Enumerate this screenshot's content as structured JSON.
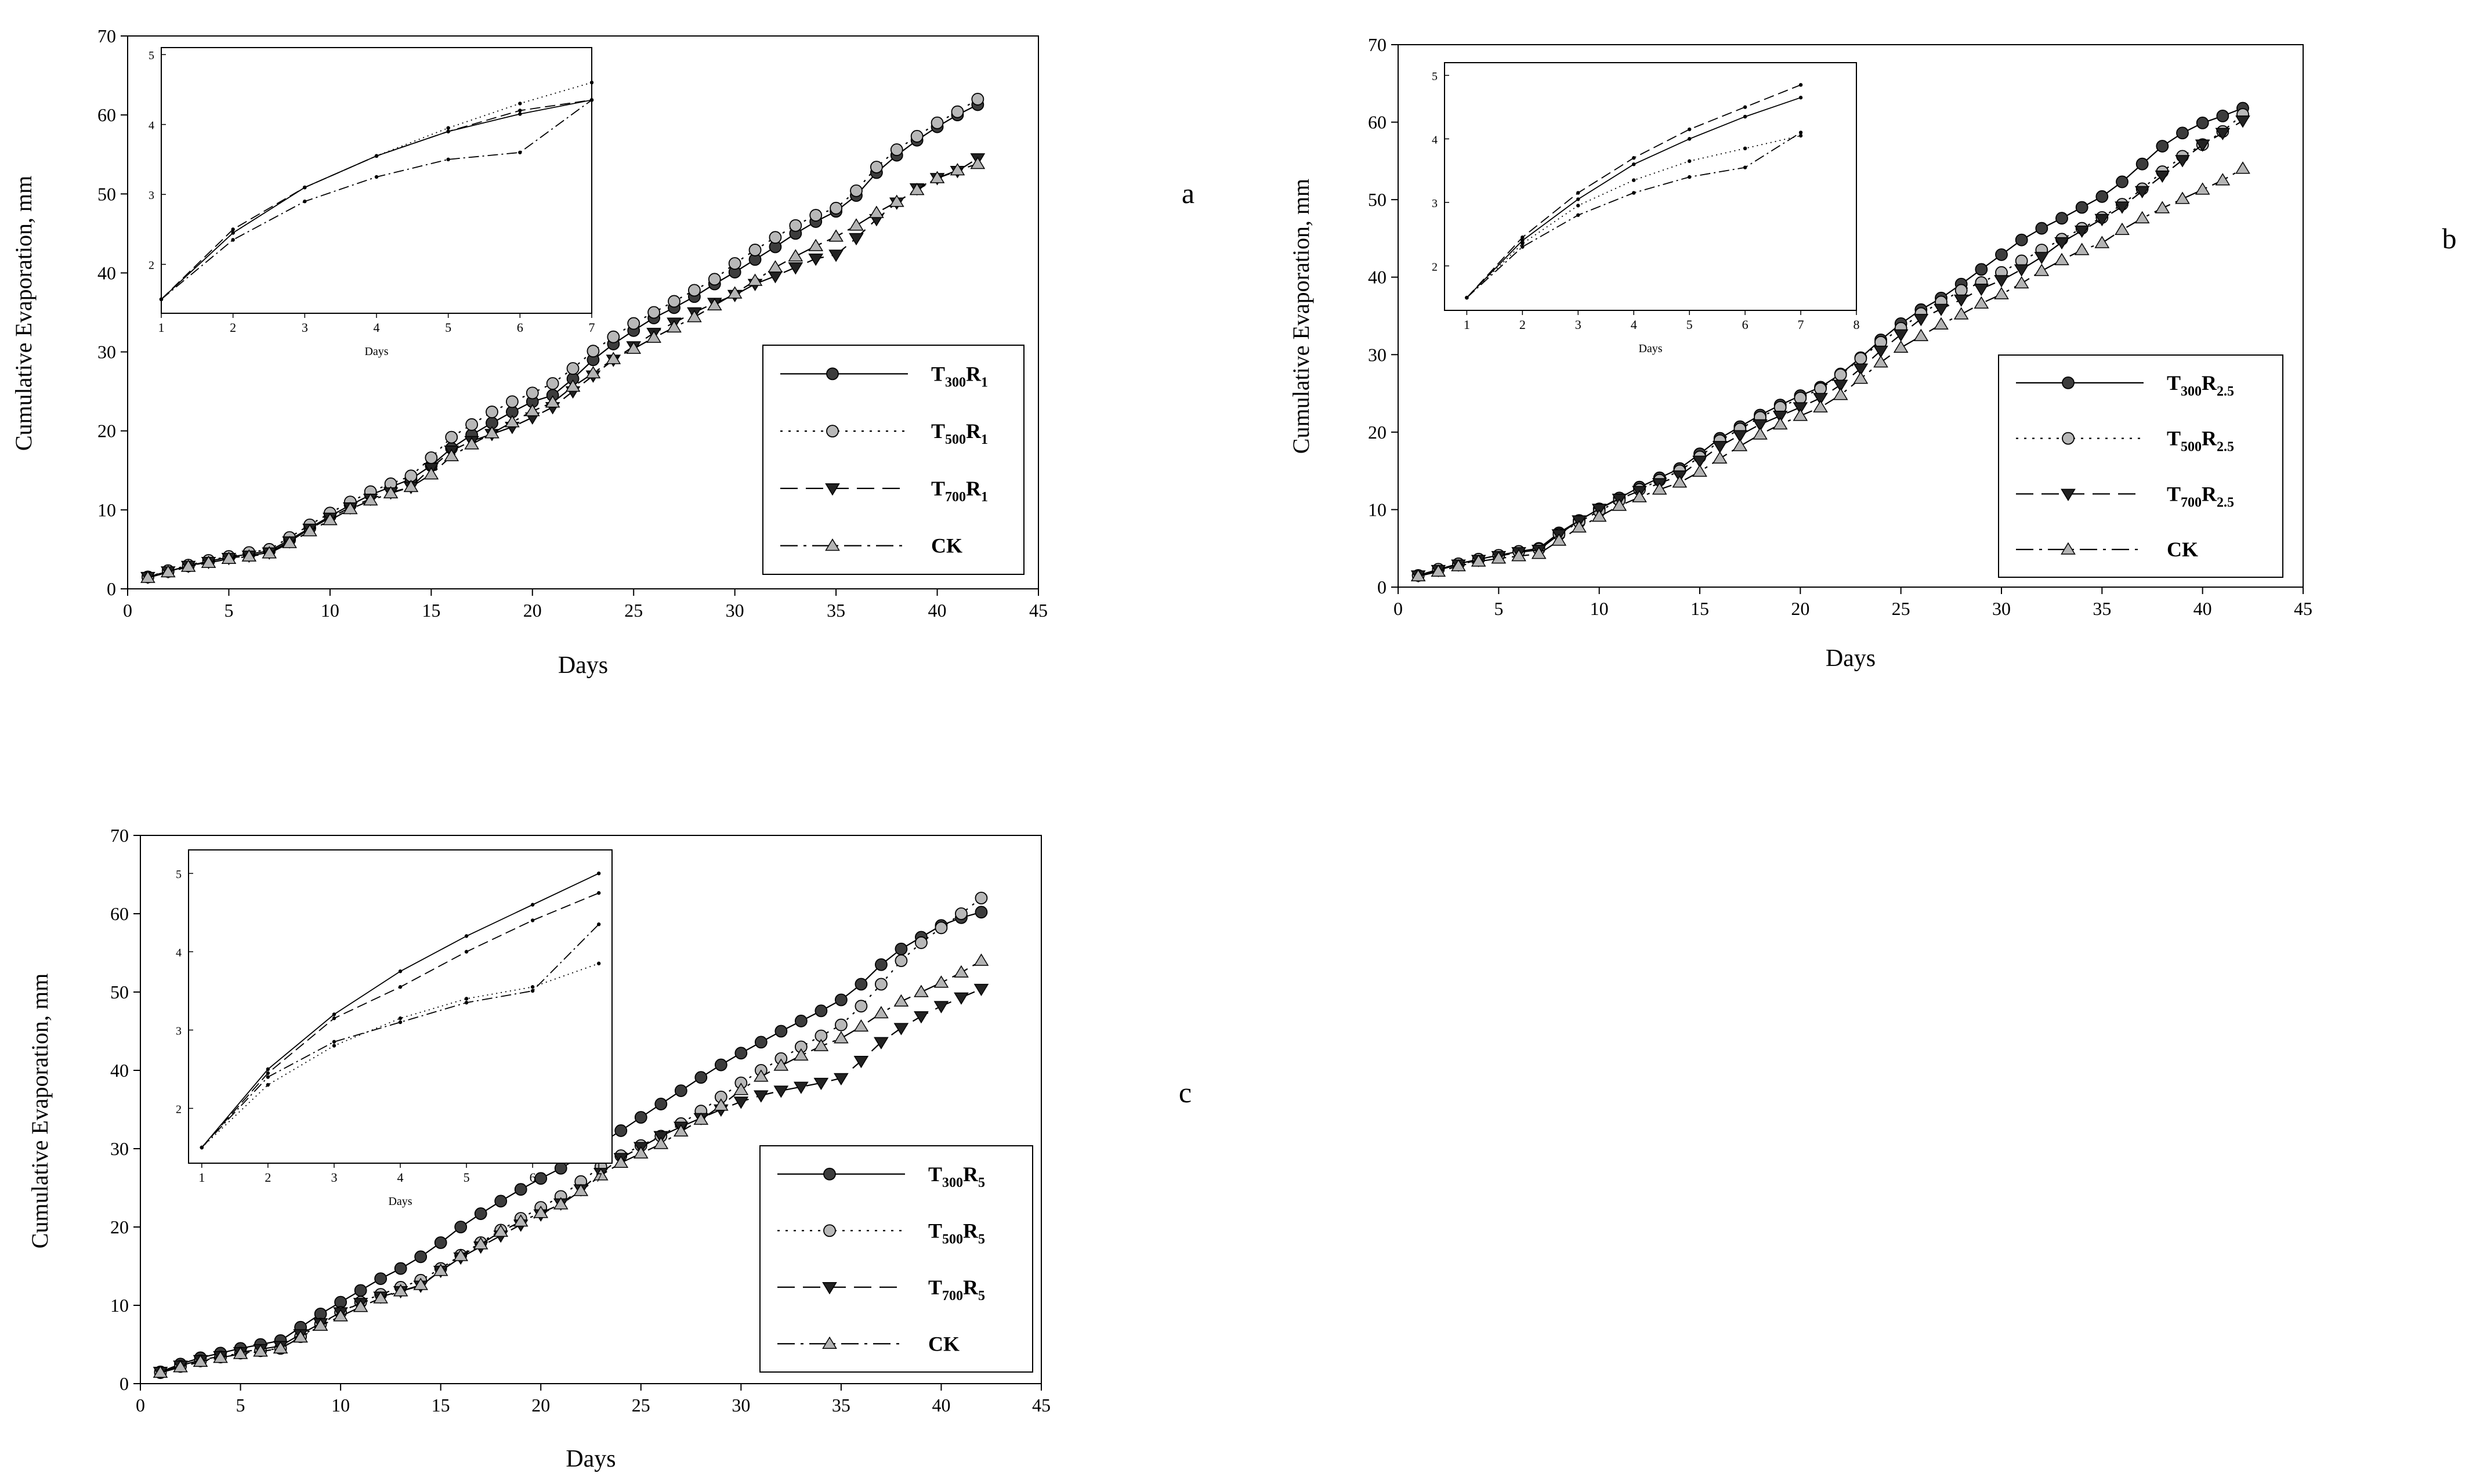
{
  "figure": {
    "panels": [
      {
        "key": "a",
        "label": "a",
        "legend": [
          {
            "base": "T",
            "sub1": "300",
            "mid": "R",
            "sub2": "1"
          },
          {
            "base": "T",
            "sub1": "500",
            "mid": "R",
            "sub2": "1"
          },
          {
            "base": "T",
            "sub1": "700",
            "mid": "R",
            "sub2": "1"
          },
          {
            "base": "CK",
            "sub1": "",
            "mid": "",
            "sub2": ""
          }
        ]
      },
      {
        "key": "b",
        "label": "b",
        "legend": [
          {
            "base": "T",
            "sub1": "300",
            "mid": "R",
            "sub2": "2.5"
          },
          {
            "base": "T",
            "sub1": "500",
            "mid": "R",
            "sub2": "2.5"
          },
          {
            "base": "T",
            "sub1": "700",
            "mid": "R",
            "sub2": "2.5"
          },
          {
            "base": "CK",
            "sub1": "",
            "mid": "",
            "sub2": ""
          }
        ]
      },
      {
        "key": "c",
        "label": "c",
        "legend": [
          {
            "base": "T",
            "sub1": "300",
            "mid": "R",
            "sub2": "5"
          },
          {
            "base": "T",
            "sub1": "500",
            "mid": "R",
            "sub2": "5"
          },
          {
            "base": "T",
            "sub1": "700",
            "mid": "R",
            "sub2": "5"
          },
          {
            "base": "CK",
            "sub1": "",
            "mid": "",
            "sub2": ""
          }
        ]
      }
    ]
  },
  "chart_data": [
    {
      "type": "line",
      "panel": "a",
      "title": "",
      "xlabel": "Days",
      "ylabel": "Cumulative Evaporation, mm",
      "xlim": [
        0,
        45
      ],
      "ylim": [
        0,
        70
      ],
      "xticks": [
        0,
        5,
        10,
        15,
        20,
        25,
        30,
        35,
        40,
        45
      ],
      "yticks": [
        0,
        10,
        20,
        30,
        40,
        50,
        60,
        70
      ],
      "x": [
        1,
        2,
        3,
        4,
        5,
        6,
        7,
        8,
        9,
        10,
        11,
        12,
        13,
        14,
        15,
        16,
        17,
        18,
        19,
        20,
        21,
        22,
        23,
        24,
        25,
        26,
        27,
        28,
        29,
        30,
        31,
        32,
        33,
        34,
        35,
        36,
        37,
        38,
        39,
        40,
        41,
        42
      ],
      "series": [
        {
          "name": "T300R1",
          "marker": "circle-dark",
          "values": [
            1.5,
            2.2,
            2.9,
            3.5,
            4.0,
            4.4,
            4.8,
            6.2,
            7.7,
            9.2,
            10.6,
            11.9,
            12.9,
            13.9,
            15.6,
            17.8,
            19.5,
            21.0,
            22.4,
            23.7,
            24.5,
            26.6,
            29.0,
            31.0,
            32.7,
            34.3,
            35.6,
            37.0,
            38.6,
            40.1,
            41.7,
            43.3,
            45.0,
            46.5,
            47.8,
            49.8,
            52.7,
            54.9,
            56.8,
            58.5,
            60.0,
            61.3
          ]
        },
        {
          "name": "T500R1",
          "marker": "circle-light",
          "values": [
            1.5,
            2.3,
            3.0,
            3.6,
            4.1,
            4.6,
            5.0,
            6.5,
            8.1,
            9.6,
            11.0,
            12.3,
            13.3,
            14.3,
            16.6,
            19.2,
            20.8,
            22.4,
            23.7,
            24.8,
            26.0,
            27.9,
            30.1,
            31.9,
            33.6,
            35.0,
            36.4,
            37.8,
            39.2,
            41.2,
            42.9,
            44.5,
            46.0,
            47.3,
            48.2,
            50.4,
            53.4,
            55.6,
            57.3,
            59.0,
            60.4,
            62.0
          ]
        },
        {
          "name": "T700R1",
          "marker": "triangle-down",
          "values": [
            1.5,
            2.2,
            2.9,
            3.4,
            3.9,
            4.2,
            4.6,
            6.0,
            7.6,
            9.0,
            10.3,
            11.4,
            12.2,
            12.9,
            15.3,
            17.5,
            18.7,
            19.6,
            20.5,
            21.7,
            23.0,
            25.0,
            27.0,
            29.0,
            30.7,
            32.4,
            33.7,
            35.0,
            36.2,
            37.2,
            38.6,
            39.6,
            40.7,
            41.8,
            42.3,
            44.4,
            46.8,
            48.9,
            50.7,
            52.0,
            52.9,
            54.5
          ]
        },
        {
          "name": "CK",
          "marker": "triangle-up",
          "values": [
            1.4,
            2.1,
            2.8,
            3.3,
            3.8,
            4.1,
            4.5,
            5.8,
            7.3,
            8.7,
            10.1,
            11.2,
            12.1,
            12.9,
            14.5,
            16.8,
            18.3,
            19.7,
            21.1,
            22.5,
            23.6,
            25.6,
            27.3,
            29.1,
            30.4,
            31.8,
            33.1,
            34.4,
            35.9,
            37.4,
            39.0,
            40.7,
            42.1,
            43.4,
            44.6,
            46.0,
            47.6,
            49.0,
            50.5,
            52.0,
            53.0,
            53.8
          ]
        }
      ],
      "inset": {
        "xlabel": "Days",
        "xlim": [
          1,
          7
        ],
        "ylim": [
          1.3,
          5.1
        ],
        "xticks": [
          1,
          2,
          3,
          4,
          5,
          6,
          7
        ],
        "yticks": [
          2,
          3,
          4,
          5
        ],
        "x": [
          1,
          2,
          3,
          4,
          5,
          6,
          7
        ],
        "series": [
          {
            "name": "T300R1",
            "values": [
              1.5,
              2.45,
              3.1,
              3.55,
              3.9,
              4.15,
              4.35
            ]
          },
          {
            "name": "T500R1",
            "values": [
              1.5,
              2.45,
              3.1,
              3.55,
              3.95,
              4.3,
              4.6
            ]
          },
          {
            "name": "T700R1",
            "values": [
              1.5,
              2.5,
              3.1,
              3.55,
              3.9,
              4.2,
              4.35
            ]
          },
          {
            "name": "CK",
            "values": [
              1.5,
              2.35,
              2.9,
              3.25,
              3.5,
              3.6,
              4.35
            ]
          }
        ]
      }
    },
    {
      "type": "line",
      "panel": "b",
      "title": "",
      "xlabel": "Days",
      "ylabel": "Cumulative Evaporation, mm",
      "xlim": [
        0,
        45
      ],
      "ylim": [
        0,
        70
      ],
      "xticks": [
        0,
        5,
        10,
        15,
        20,
        25,
        30,
        35,
        40,
        45
      ],
      "yticks": [
        0,
        10,
        20,
        30,
        40,
        50,
        60,
        70
      ],
      "x": [
        1,
        2,
        3,
        4,
        5,
        6,
        7,
        8,
        9,
        10,
        11,
        12,
        13,
        14,
        15,
        16,
        17,
        18,
        19,
        20,
        21,
        22,
        23,
        24,
        25,
        26,
        27,
        28,
        29,
        30,
        31,
        32,
        33,
        34,
        35,
        36,
        37,
        38,
        39,
        40,
        41,
        42
      ],
      "series": [
        {
          "name": "T300R2.5",
          "marker": "circle-dark",
          "values": [
            1.5,
            2.3,
            3.0,
            3.6,
            4.1,
            4.6,
            5.0,
            7.0,
            8.6,
            10.1,
            11.5,
            12.9,
            14.1,
            15.3,
            17.2,
            19.2,
            20.7,
            22.2,
            23.5,
            24.7,
            25.8,
            27.5,
            29.6,
            31.9,
            34.0,
            35.8,
            37.3,
            39.1,
            41.0,
            42.9,
            44.8,
            46.3,
            47.6,
            49.0,
            50.4,
            52.3,
            54.6,
            56.9,
            58.6,
            59.9,
            60.8,
            61.8
          ]
        },
        {
          "name": "T500R2.5",
          "marker": "circle-light",
          "values": [
            1.5,
            2.3,
            3.0,
            3.6,
            4.1,
            4.6,
            4.9,
            6.8,
            8.4,
            9.8,
            11.2,
            12.6,
            13.8,
            15.0,
            16.8,
            18.9,
            20.4,
            21.9,
            23.2,
            24.4,
            25.6,
            27.4,
            29.5,
            31.6,
            33.4,
            35.3,
            36.8,
            38.3,
            39.3,
            40.6,
            42.1,
            43.5,
            44.9,
            46.3,
            47.7,
            49.4,
            51.4,
            53.6,
            55.6,
            57.1,
            58.8,
            61.0
          ]
        },
        {
          "name": "T700R2.5",
          "marker": "triangle-down",
          "values": [
            1.5,
            2.2,
            2.9,
            3.5,
            4.0,
            4.5,
            4.8,
            6.8,
            8.6,
            10.1,
            11.4,
            12.4,
            13.4,
            14.4,
            16.3,
            18.2,
            19.6,
            21.0,
            22.1,
            23.2,
            24.4,
            26.1,
            28.2,
            30.5,
            32.6,
            34.6,
            35.9,
            37.1,
            38.5,
            39.6,
            41.0,
            42.6,
            44.5,
            46.0,
            47.5,
            49.1,
            51.1,
            53.1,
            55.1,
            57.1,
            58.6,
            60.2
          ]
        },
        {
          "name": "CK",
          "marker": "triangle-up",
          "values": [
            1.4,
            2.0,
            2.7,
            3.3,
            3.7,
            4.0,
            4.3,
            6.0,
            7.7,
            9.1,
            10.5,
            11.6,
            12.6,
            13.5,
            14.9,
            16.6,
            18.2,
            19.7,
            21.0,
            22.1,
            23.2,
            24.8,
            26.9,
            29.0,
            30.9,
            32.4,
            33.9,
            35.2,
            36.6,
            37.8,
            39.2,
            40.8,
            42.2,
            43.5,
            44.4,
            46.1,
            47.6,
            48.9,
            50.1,
            51.3,
            52.5,
            54.0
          ]
        }
      ],
      "inset": {
        "xlabel": "Days",
        "xlim": [
          0.6,
          8
        ],
        "ylim": [
          1.3,
          5.2
        ],
        "xticks": [
          1,
          2,
          3,
          4,
          5,
          6,
          7,
          8
        ],
        "yticks": [
          2,
          3,
          4,
          5
        ],
        "x": [
          1,
          2,
          3,
          4,
          5,
          6,
          7
        ],
        "series": [
          {
            "name": "T300R2.5",
            "values": [
              1.5,
              2.4,
              3.05,
              3.6,
              4.0,
              4.35,
              4.65
            ]
          },
          {
            "name": "T500R2.5",
            "values": [
              1.5,
              2.35,
              2.95,
              3.35,
              3.65,
              3.85,
              4.05
            ]
          },
          {
            "name": "T700R2.5",
            "values": [
              1.5,
              2.45,
              3.15,
              3.7,
              4.15,
              4.5,
              4.85
            ]
          },
          {
            "name": "CK",
            "values": [
              1.5,
              2.3,
              2.8,
              3.15,
              3.4,
              3.55,
              4.1
            ]
          }
        ]
      }
    },
    {
      "type": "line",
      "panel": "c",
      "title": "",
      "xlabel": "Days",
      "ylabel": "Cumulative Evaporation, mm",
      "xlim": [
        0,
        45
      ],
      "ylim": [
        0,
        70
      ],
      "xticks": [
        0,
        5,
        10,
        15,
        20,
        25,
        30,
        35,
        40,
        45
      ],
      "yticks": [
        0,
        10,
        20,
        30,
        40,
        50,
        60,
        70
      ],
      "x": [
        1,
        2,
        3,
        4,
        5,
        6,
        7,
        8,
        9,
        10,
        11,
        12,
        13,
        14,
        15,
        16,
        17,
        18,
        19,
        20,
        21,
        22,
        23,
        24,
        25,
        26,
        27,
        28,
        29,
        30,
        31,
        32,
        33,
        34,
        35,
        36,
        37,
        38,
        39,
        40,
        41,
        42
      ],
      "series": [
        {
          "name": "T300R5",
          "marker": "circle-dark",
          "values": [
            1.5,
            2.5,
            3.3,
            3.9,
            4.5,
            5.0,
            5.5,
            7.2,
            8.9,
            10.4,
            11.9,
            13.4,
            14.7,
            16.2,
            18.0,
            20.0,
            21.7,
            23.3,
            24.8,
            26.2,
            27.5,
            29.0,
            30.7,
            32.3,
            34.0,
            35.7,
            37.4,
            39.1,
            40.7,
            42.2,
            43.6,
            45.0,
            46.3,
            47.6,
            49.0,
            51.0,
            53.5,
            55.5,
            57.0,
            58.5,
            59.5,
            60.2
          ]
        },
        {
          "name": "T500R5",
          "marker": "circle-light",
          "values": [
            1.4,
            2.2,
            2.9,
            3.4,
            3.9,
            4.2,
            4.5,
            6.0,
            7.6,
            9.1,
            10.4,
            11.4,
            12.3,
            13.2,
            14.7,
            16.4,
            18.0,
            19.6,
            21.1,
            22.5,
            23.9,
            25.8,
            27.7,
            29.1,
            30.4,
            31.6,
            33.2,
            34.8,
            36.6,
            38.4,
            40.0,
            41.5,
            43.0,
            44.4,
            45.8,
            48.2,
            51.0,
            54.0,
            56.3,
            58.2,
            60.0,
            62.0
          ]
        },
        {
          "name": "T700R5",
          "marker": "triangle-down",
          "values": [
            1.5,
            2.3,
            3.0,
            3.5,
            4.0,
            4.4,
            4.8,
            6.3,
            7.7,
            9.1,
            10.3,
            11.1,
            11.8,
            12.5,
            14.4,
            16.1,
            17.5,
            18.9,
            20.3,
            21.6,
            23.0,
            24.8,
            26.9,
            28.8,
            30.2,
            31.6,
            32.8,
            33.9,
            35.0,
            36.0,
            36.8,
            37.4,
            37.9,
            38.4,
            39.0,
            41.2,
            43.6,
            45.4,
            46.9,
            48.2,
            49.3,
            50.4
          ]
        },
        {
          "name": "CK",
          "marker": "triangle-up",
          "values": [
            1.4,
            2.1,
            2.8,
            3.3,
            3.8,
            4.1,
            4.5,
            5.9,
            7.4,
            8.6,
            9.8,
            10.9,
            11.8,
            12.6,
            14.4,
            16.3,
            17.8,
            19.4,
            20.7,
            21.8,
            22.9,
            24.6,
            26.6,
            28.2,
            29.4,
            30.6,
            32.2,
            33.7,
            35.5,
            37.5,
            39.2,
            40.6,
            41.9,
            43.1,
            44.1,
            45.6,
            47.3,
            48.8,
            50.0,
            51.2,
            52.5,
            54.0
          ]
        }
      ],
      "inset": {
        "xlabel": "Days",
        "xlim": [
          0.8,
          7.2
        ],
        "ylim": [
          1.3,
          5.3
        ],
        "xticks": [
          1,
          2,
          3,
          4,
          5,
          6,
          7
        ],
        "yticks": [
          2,
          3,
          4,
          5
        ],
        "x": [
          1,
          2,
          3,
          4,
          5,
          6,
          7
        ],
        "series": [
          {
            "name": "T300R5",
            "values": [
              1.5,
              2.5,
              3.2,
              3.75,
              4.2,
              4.6,
              5.0
            ]
          },
          {
            "name": "T500R5",
            "values": [
              1.5,
              2.3,
              2.8,
              3.15,
              3.4,
              3.55,
              3.85
            ]
          },
          {
            "name": "T700R5",
            "values": [
              1.5,
              2.45,
              3.15,
              3.55,
              4.0,
              4.4,
              4.75
            ]
          },
          {
            "name": "CK",
            "values": [
              1.5,
              2.4,
              2.85,
              3.1,
              3.35,
              3.5,
              4.35
            ]
          }
        ]
      }
    }
  ]
}
